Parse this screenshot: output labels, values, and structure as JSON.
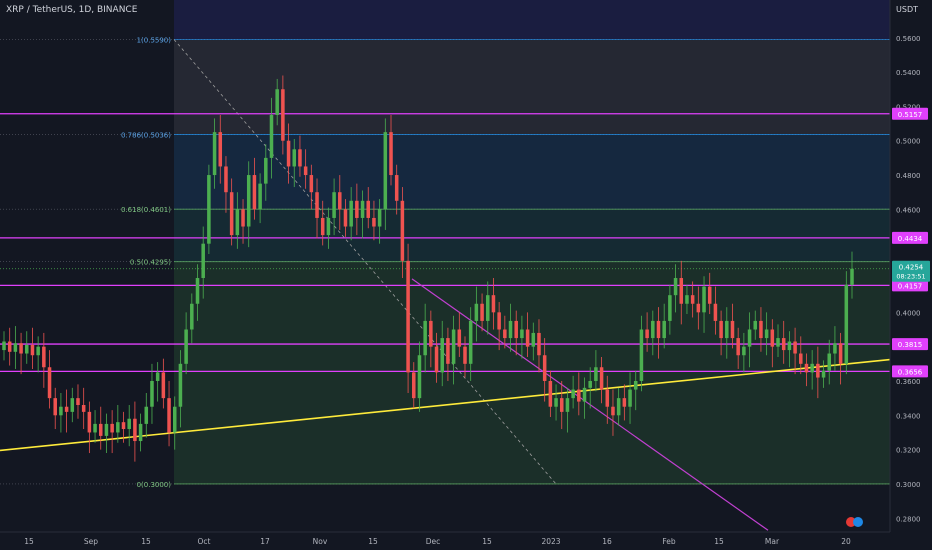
{
  "header": {
    "title": "XRP / TetherUS, 1D, BINANCE"
  },
  "price_axis": {
    "currency": "USDT"
  },
  "colors": {
    "background": "#131722",
    "bull": "#26a69a",
    "bull_bright": "#4caf50",
    "bear": "#ef5350",
    "resistance": "#e040fb",
    "trendline": "#ffeb3b",
    "downtrend": "#c040d0",
    "fib_line": "#787b86"
  },
  "chart_data": {
    "type": "candlestick",
    "title": "XRP / TetherUS, 1D, BINANCE",
    "ylim": [
      0.272,
      0.582
    ],
    "y_ticks": [
      "0.5800",
      "0.5600",
      "0.5400",
      "0.5200",
      "0.5000",
      "0.4800",
      "0.4600",
      "0.4200",
      "0.4000",
      "0.3600",
      "0.3400",
      "0.3200",
      "0.3000",
      "0.2800"
    ],
    "x_ticks": [
      "15",
      "Sep",
      "15",
      "Oct",
      "17",
      "Nov",
      "15",
      "Dec",
      "15",
      "2023",
      "16",
      "Feb",
      "15",
      "Mar",
      "20"
    ],
    "fib_levels": [
      {
        "label": "1(0.5590)",
        "value": 0.559
      },
      {
        "label": "0.786(0.5036)",
        "value": 0.5036
      },
      {
        "label": "0.618(0.4601)",
        "value": 0.4601
      },
      {
        "label": "0.5(0.4295)",
        "value": 0.4295
      },
      {
        "label": "0(0.3000)",
        "value": 0.3
      }
    ],
    "horizontal_levels": [
      {
        "label": "0.5157",
        "value": 0.5157
      },
      {
        "label": "0.4434",
        "value": 0.4434
      },
      {
        "label": "0.4157",
        "value": 0.4157
      },
      {
        "label": "0.3815",
        "value": 0.3815
      },
      {
        "label": "0.3656",
        "value": 0.3656
      }
    ],
    "current_price": {
      "label": "0.4254",
      "countdown": "08:23:51",
      "value": 0.4254
    },
    "candles": [
      [
        0.378,
        0.383
      ],
      [
        0.383,
        0.377
      ],
      [
        0.377,
        0.382
      ],
      [
        0.382,
        0.376
      ],
      [
        0.376,
        0.381
      ],
      [
        0.381,
        0.375
      ],
      [
        0.375,
        0.38
      ],
      [
        0.38,
        0.368
      ],
      [
        0.368,
        0.35
      ],
      [
        0.35,
        0.34
      ],
      [
        0.34,
        0.345
      ],
      [
        0.345,
        0.342
      ],
      [
        0.342,
        0.35
      ],
      [
        0.35,
        0.346
      ],
      [
        0.346,
        0.342
      ],
      [
        0.342,
        0.33
      ],
      [
        0.33,
        0.335
      ],
      [
        0.335,
        0.328
      ],
      [
        0.328,
        0.335
      ],
      [
        0.335,
        0.33
      ],
      [
        0.33,
        0.336
      ],
      [
        0.336,
        0.332
      ],
      [
        0.332,
        0.338
      ],
      [
        0.338,
        0.325
      ],
      [
        0.325,
        0.335
      ],
      [
        0.335,
        0.345
      ],
      [
        0.345,
        0.36
      ],
      [
        0.36,
        0.365
      ],
      [
        0.365,
        0.35
      ],
      [
        0.35,
        0.33
      ],
      [
        0.33,
        0.345
      ],
      [
        0.345,
        0.37
      ],
      [
        0.37,
        0.39
      ],
      [
        0.39,
        0.405
      ],
      [
        0.405,
        0.42
      ],
      [
        0.42,
        0.44
      ],
      [
        0.44,
        0.48
      ],
      [
        0.48,
        0.505
      ],
      [
        0.505,
        0.485
      ],
      [
        0.485,
        0.47
      ],
      [
        0.47,
        0.445
      ],
      [
        0.445,
        0.46
      ],
      [
        0.46,
        0.45
      ],
      [
        0.45,
        0.48
      ],
      [
        0.48,
        0.46
      ],
      [
        0.46,
        0.475
      ],
      [
        0.475,
        0.49
      ],
      [
        0.49,
        0.515
      ],
      [
        0.515,
        0.53
      ],
      [
        0.53,
        0.5
      ],
      [
        0.5,
        0.485
      ],
      [
        0.485,
        0.495
      ],
      [
        0.495,
        0.485
      ],
      [
        0.485,
        0.48
      ],
      [
        0.48,
        0.47
      ],
      [
        0.47,
        0.455
      ],
      [
        0.455,
        0.445
      ],
      [
        0.445,
        0.455
      ],
      [
        0.455,
        0.47
      ],
      [
        0.47,
        0.46
      ],
      [
        0.46,
        0.45
      ],
      [
        0.45,
        0.465
      ],
      [
        0.465,
        0.455
      ],
      [
        0.455,
        0.465
      ],
      [
        0.465,
        0.455
      ],
      [
        0.455,
        0.45
      ],
      [
        0.45,
        0.46
      ],
      [
        0.46,
        0.505
      ],
      [
        0.505,
        0.48
      ],
      [
        0.48,
        0.465
      ],
      [
        0.465,
        0.43
      ],
      [
        0.43,
        0.365
      ],
      [
        0.365,
        0.35
      ],
      [
        0.35,
        0.375
      ],
      [
        0.375,
        0.395
      ],
      [
        0.395,
        0.38
      ],
      [
        0.38,
        0.365
      ],
      [
        0.365,
        0.385
      ],
      [
        0.385,
        0.37
      ],
      [
        0.37,
        0.39
      ],
      [
        0.39,
        0.38
      ],
      [
        0.38,
        0.37
      ],
      [
        0.37,
        0.395
      ],
      [
        0.395,
        0.405
      ],
      [
        0.405,
        0.395
      ],
      [
        0.395,
        0.41
      ],
      [
        0.41,
        0.4
      ],
      [
        0.4,
        0.39
      ],
      [
        0.39,
        0.385
      ],
      [
        0.385,
        0.395
      ],
      [
        0.395,
        0.385
      ],
      [
        0.385,
        0.39
      ],
      [
        0.39,
        0.38
      ],
      [
        0.38,
        0.388
      ],
      [
        0.388,
        0.375
      ],
      [
        0.375,
        0.36
      ],
      [
        0.36,
        0.345
      ],
      [
        0.345,
        0.35
      ],
      [
        0.35,
        0.342
      ],
      [
        0.342,
        0.35
      ],
      [
        0.35,
        0.355
      ],
      [
        0.355,
        0.348
      ],
      [
        0.348,
        0.356
      ],
      [
        0.356,
        0.36
      ],
      [
        0.36,
        0.368
      ],
      [
        0.368,
        0.355
      ],
      [
        0.355,
        0.345
      ],
      [
        0.345,
        0.34
      ],
      [
        0.34,
        0.35
      ],
      [
        0.35,
        0.345
      ],
      [
        0.345,
        0.355
      ],
      [
        0.355,
        0.36
      ],
      [
        0.36,
        0.39
      ],
      [
        0.39,
        0.385
      ],
      [
        0.385,
        0.395
      ],
      [
        0.395,
        0.385
      ],
      [
        0.385,
        0.395
      ],
      [
        0.395,
        0.41
      ],
      [
        0.41,
        0.42
      ],
      [
        0.42,
        0.405
      ],
      [
        0.405,
        0.41
      ],
      [
        0.41,
        0.405
      ],
      [
        0.405,
        0.4
      ],
      [
        0.4,
        0.415
      ],
      [
        0.415,
        0.405
      ],
      [
        0.405,
        0.395
      ],
      [
        0.395,
        0.385
      ],
      [
        0.385,
        0.395
      ],
      [
        0.395,
        0.385
      ],
      [
        0.385,
        0.375
      ],
      [
        0.375,
        0.38
      ],
      [
        0.38,
        0.39
      ],
      [
        0.39,
        0.395
      ],
      [
        0.395,
        0.385
      ],
      [
        0.385,
        0.39
      ],
      [
        0.39,
        0.38
      ],
      [
        0.38,
        0.385
      ],
      [
        0.385,
        0.378
      ],
      [
        0.378,
        0.383
      ],
      [
        0.383,
        0.376
      ],
      [
        0.376,
        0.37
      ],
      [
        0.37,
        0.365
      ],
      [
        0.365,
        0.37
      ],
      [
        0.37,
        0.362
      ],
      [
        0.362,
        0.366
      ],
      [
        0.366,
        0.376
      ],
      [
        0.376,
        0.382
      ],
      [
        0.382,
        0.37
      ],
      [
        0.37,
        0.416
      ],
      [
        0.416,
        0.4254
      ]
    ]
  }
}
